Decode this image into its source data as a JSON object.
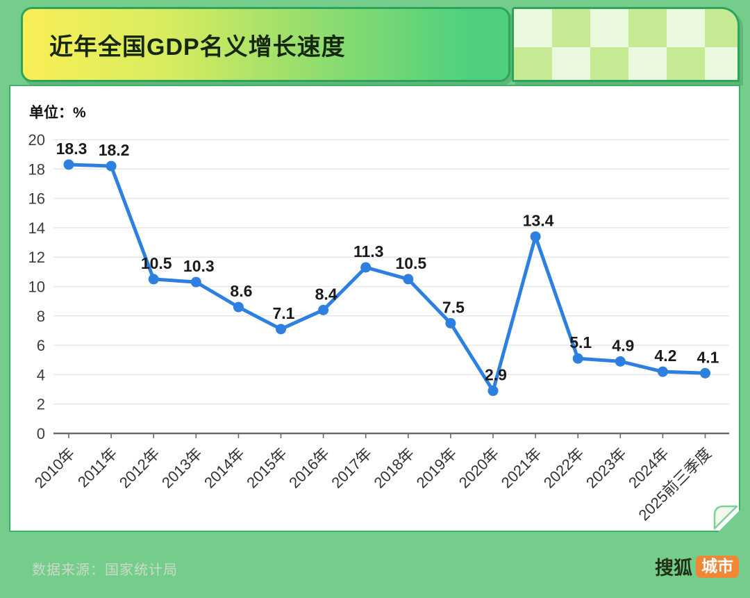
{
  "header": {
    "title": "近年全国GDP名义增长速度"
  },
  "chart": {
    "unit_label": "单位：%"
  },
  "chart_data": {
    "type": "line",
    "title": "近年全国GDP名义增长速度",
    "unit": "%",
    "categories": [
      "2010年",
      "2011年",
      "2012年",
      "2013年",
      "2014年",
      "2015年",
      "2016年",
      "2017年",
      "2018年",
      "2019年",
      "2020年",
      "2021年",
      "2022年",
      "2023年",
      "2024年",
      "2025前三季度"
    ],
    "values": [
      18.3,
      18.2,
      10.5,
      10.3,
      8.6,
      7.1,
      8.4,
      11.3,
      10.5,
      7.5,
      2.9,
      13.4,
      5.1,
      4.9,
      4.2,
      4.1
    ],
    "ylim": [
      0,
      20
    ],
    "yticks": [
      0,
      2,
      4,
      6,
      8,
      10,
      12,
      14,
      16,
      18,
      20
    ],
    "grid": true,
    "legend": "none",
    "line_color": "#2e80e0",
    "point_color": "#2e80e0",
    "data_label_color": "#1b1b1b"
  },
  "footer": {
    "source": "数据来源：国家统计局",
    "brand": {
      "name": "搜狐",
      "badge": "城市"
    }
  },
  "colors": {
    "background_green": "#74cd8a",
    "border_green": "#2ca45e",
    "header_gradient_start": "#f9ef55",
    "header_gradient_end": "#4fd07e",
    "checker_light": "#eaf8dd",
    "checker_green": "#c5ea93",
    "accent_blue": "#2e80e0",
    "badge_orange": "#ee8837"
  }
}
